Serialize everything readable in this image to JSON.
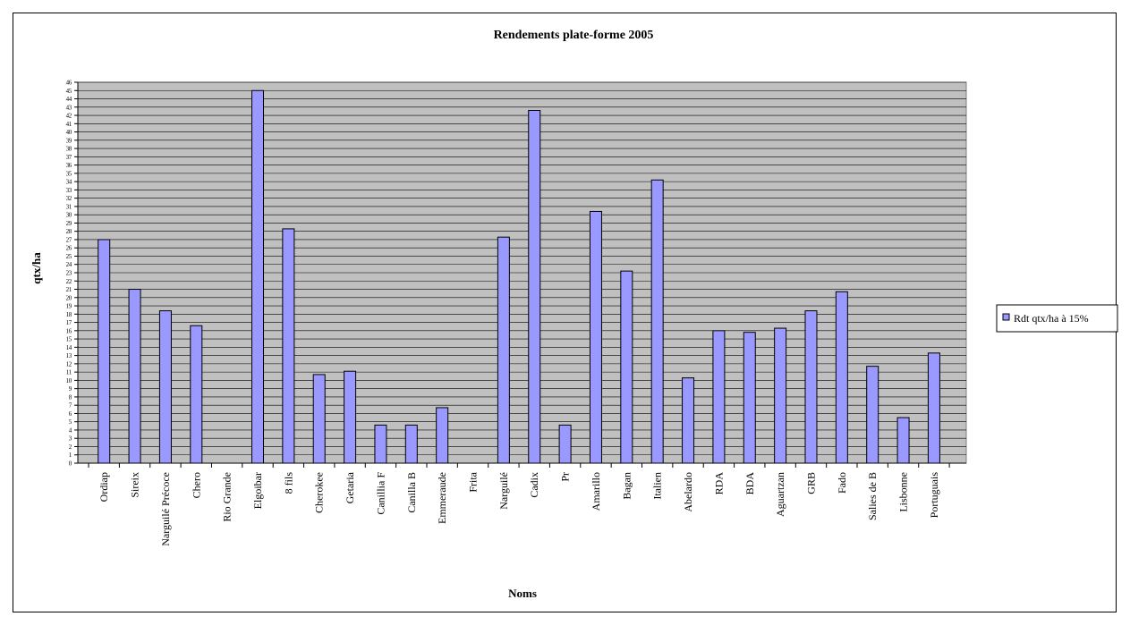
{
  "chart_data": {
    "type": "bar",
    "title": "Rendements plate-forme 2005",
    "xlabel": "Noms",
    "ylabel": "qtx/ha",
    "ylim": [
      0,
      46
    ],
    "y_ticks": [
      0,
      1,
      2,
      3,
      4,
      5,
      6,
      7,
      8,
      9,
      10,
      11,
      12,
      13,
      14,
      15,
      16,
      17,
      18,
      19,
      20,
      21,
      22,
      23,
      24,
      25,
      26,
      27,
      28,
      29,
      30,
      31,
      32,
      33,
      34,
      35,
      36,
      37,
      38,
      39,
      40,
      41,
      42,
      43,
      44,
      45,
      46
    ],
    "grid": true,
    "legend_position": "right",
    "categories": [
      "Ordiap",
      "Sireix",
      "Narguilé Précoce",
      "Chero",
      "Rio Grande",
      "Elgoibar",
      "8 fils",
      "Cherokee",
      "Getaria",
      "Canillia F",
      "Canilla B",
      "Emmeraude",
      "Frita",
      "Narguilé",
      "Cadix",
      "Pr",
      "Amarillo",
      "Bagan",
      "Italien",
      "Abelardo",
      "RDA",
      "BDA",
      "Aguartzan",
      "GRB",
      "Fado",
      "Salies de B",
      "Lisbonne",
      "Portuguais"
    ],
    "series": [
      {
        "name": "Rdt qtx/ha à 15%",
        "color": "#9999ff",
        "values": [
          27,
          21,
          18.4,
          16.6,
          0,
          45,
          28.3,
          10.7,
          11.1,
          4.6,
          4.6,
          6.7,
          0,
          27.3,
          42.6,
          4.6,
          30.4,
          23.2,
          34.2,
          10.3,
          16,
          15.8,
          16.3,
          18.4,
          20.7,
          11.7,
          5.5,
          13.3
        ]
      }
    ]
  }
}
